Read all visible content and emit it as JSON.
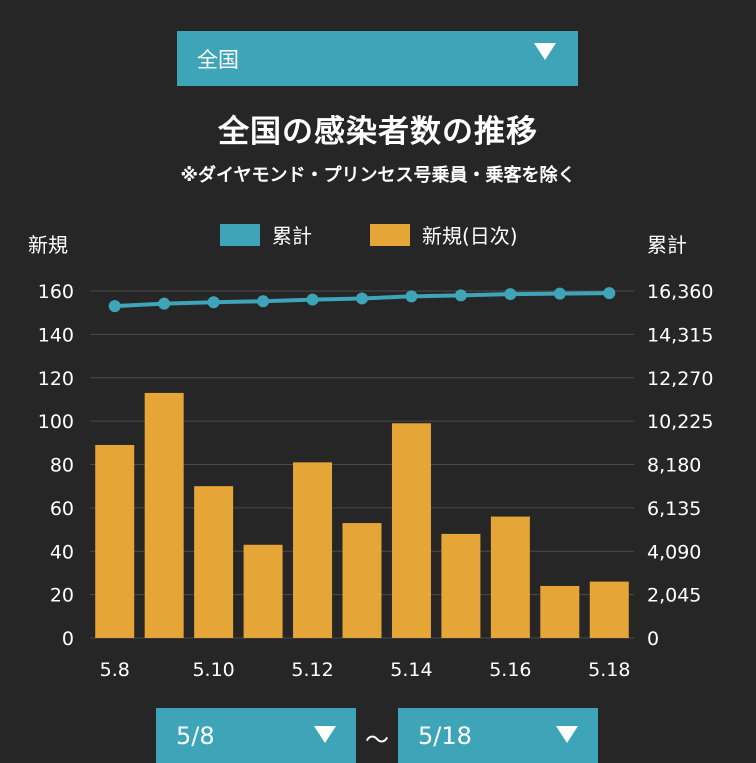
{
  "region_select": {
    "value": "全国"
  },
  "title": "全国の感染者数の推移",
  "subtitle": "※ダイヤモンド・プリンセス号乗員・乗客を除く",
  "date_range": {
    "start": "5/8",
    "separator": "〜",
    "end": "5/18"
  },
  "colors": {
    "cumulative": "#3ea4b8",
    "daily": "#e6a537",
    "background": "#262626",
    "grid": "#4a4a4a"
  },
  "chart_data": {
    "type": "bar",
    "legend": [
      "累計",
      "新規(日次)"
    ],
    "ylabel_left": "新規",
    "ylabel_right": "累計",
    "ylim_left": [
      0,
      160
    ],
    "ylim_right": [
      0,
      16360
    ],
    "yticks_left": [
      "0",
      "20",
      "40",
      "60",
      "80",
      "100",
      "120",
      "140",
      "160"
    ],
    "yticks_right": [
      "0",
      "2,045",
      "4,090",
      "6,135",
      "8,180",
      "10,225",
      "12,270",
      "14,315",
      "16,360"
    ],
    "xtick_labels": [
      "5.8",
      "5.10",
      "5.12",
      "5.14",
      "5.16",
      "5.18"
    ],
    "dates": [
      "5.8",
      "5.9",
      "5.10",
      "5.11",
      "5.12",
      "5.13",
      "5.14",
      "5.15",
      "5.16",
      "5.17",
      "5.18"
    ],
    "series": [
      {
        "name": "新規(日次)",
        "type": "bar",
        "axis": "left",
        "values": [
          89,
          113,
          70,
          43,
          81,
          53,
          99,
          48,
          56,
          24,
          26
        ]
      },
      {
        "name": "累計",
        "type": "line",
        "axis": "right",
        "values": [
          15649,
          15762,
          15832,
          15875,
          15956,
          16009,
          16108,
          16156,
          16212,
          16236,
          16262
        ]
      }
    ],
    "grid": true
  }
}
